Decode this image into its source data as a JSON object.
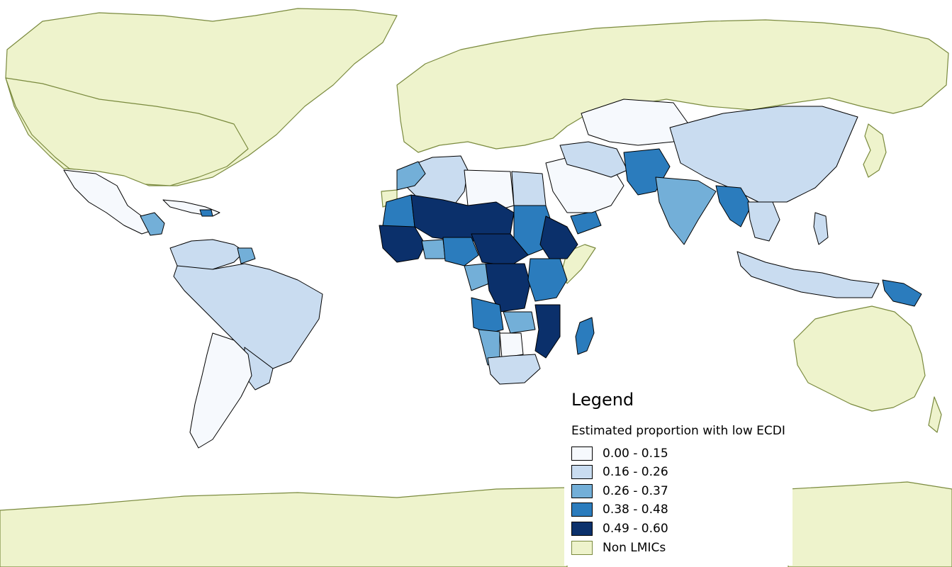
{
  "legend": {
    "title": "Legend",
    "subtitle": "Estimated proportion with low ECDI",
    "classes": [
      {
        "label": "0.00 - 0.15",
        "color": "#f6f9fd"
      },
      {
        "label": "0.16 - 0.26",
        "color": "#c9dcf0"
      },
      {
        "label": "0.26 - 0.37",
        "color": "#73afd8"
      },
      {
        "label": "0.38 - 0.48",
        "color": "#2b7cbd"
      },
      {
        "label": "0.49 - 0.60",
        "color": "#0b306b"
      }
    ],
    "non_lmic": {
      "label": "Non LMICs",
      "color": "#eef3cc"
    }
  },
  "colors": {
    "ocean": "#ffffff",
    "non_lmic_land": "#eef3cc",
    "non_lmic_border": "#7a8a3e",
    "lmic_border": "#000000"
  }
}
